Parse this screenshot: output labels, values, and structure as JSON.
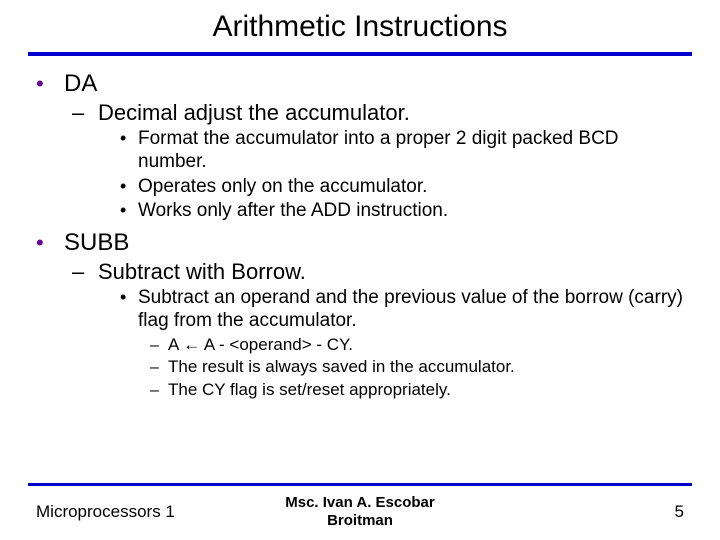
{
  "title": "Arithmetic Instructions",
  "colors": {
    "rule": "#0000cc",
    "bullet_accent": "#660099",
    "text": "#000000",
    "background": "#ffffff"
  },
  "items": [
    {
      "label": "DA",
      "sub": [
        {
          "label": "Decimal adjust the accumulator.",
          "sub": [
            {
              "label": "Format the accumulator into a proper 2 digit packed BCD number."
            },
            {
              "label": "Operates only on the accumulator."
            },
            {
              "label": "Works only after the ADD instruction."
            }
          ]
        }
      ]
    },
    {
      "label": "SUBB",
      "sub": [
        {
          "label": "Subtract with Borrow.",
          "sub": [
            {
              "label": "Subtract an operand and the previous value of the borrow (carry) flag from the accumulator.",
              "sub": [
                {
                  "label": "A ← A - <operand> - CY."
                },
                {
                  "label": "The result is always saved in the accumulator."
                },
                {
                  "label": "The CY flag is set/reset appropriately."
                }
              ]
            }
          ]
        }
      ]
    }
  ],
  "footer": {
    "left": "Microprocessors 1",
    "center_line1": "Msc. Ivan A. Escobar",
    "center_line2": "Broitman",
    "page": "5"
  }
}
